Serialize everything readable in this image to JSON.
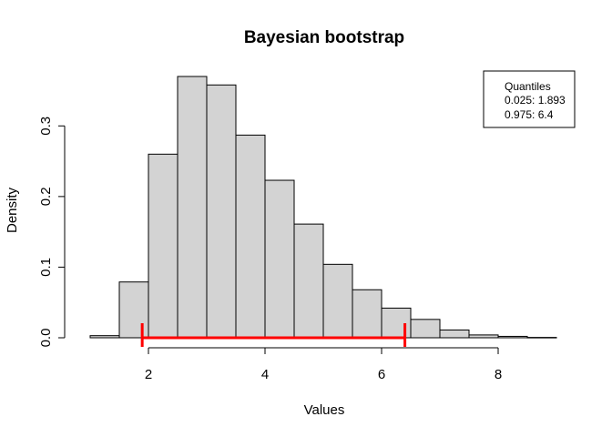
{
  "chart_data": {
    "type": "bar",
    "title": "Bayesian bootstrap",
    "xlabel": "Values",
    "ylabel": "Density",
    "xlim": [
      1,
      9
    ],
    "ylim": [
      0,
      0.37
    ],
    "x_ticks": [
      2,
      4,
      6,
      8
    ],
    "y_ticks": [
      0.0,
      0.1,
      0.2,
      0.3
    ],
    "y_tick_labels": [
      "0.0",
      "0.1",
      "0.2",
      "0.3"
    ],
    "bin_edges": [
      1.0,
      1.5,
      2.0,
      2.5,
      3.0,
      3.5,
      4.0,
      4.5,
      5.0,
      5.5,
      6.0,
      6.5,
      7.0,
      7.5,
      8.0,
      8.5,
      9.0
    ],
    "density": [
      0.003,
      0.079,
      0.26,
      0.37,
      0.358,
      0.287,
      0.223,
      0.161,
      0.104,
      0.068,
      0.042,
      0.026,
      0.011,
      0.004,
      0.002,
      0.0005
    ],
    "bar_fill": "#d3d3d3",
    "interval": {
      "lower": 1.893,
      "upper": 6.4,
      "color": "#ff0000"
    },
    "legend": {
      "position": "top-right",
      "title": "Quantiles",
      "lines": [
        "0.025: 1.893",
        "0.975: 6.4"
      ]
    },
    "grid": false
  }
}
